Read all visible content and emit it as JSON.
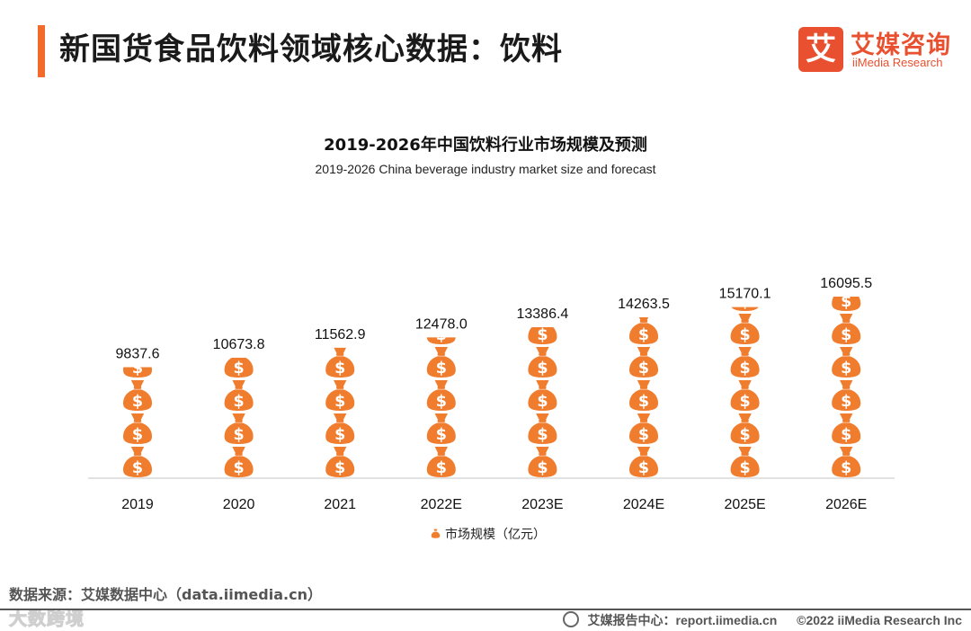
{
  "header": {
    "title": "新国货食品饮料领域核心数据：饮料",
    "accent_color": "#f26b2a"
  },
  "brand": {
    "mark": "艾",
    "name_cn": "艾媒咨询",
    "name_en": "iiMedia Research",
    "color": "#e8502f"
  },
  "chart_data": {
    "type": "bar",
    "title": "2019-2026年中国饮料行业市场规模及预测",
    "subtitle": "2019-2026 China beverage industry market size and forecast",
    "categories": [
      "2019",
      "2020",
      "2021",
      "2022E",
      "2023E",
      "2024E",
      "2025E",
      "2026E"
    ],
    "values": [
      9837.6,
      10673.8,
      11562.9,
      12478.0,
      13386.4,
      14263.5,
      15170.1,
      16095.5
    ],
    "value_labels": [
      "9837.6",
      "10673.8",
      "11562.9",
      "12478.0",
      "13386.4",
      "14263.5",
      "15170.1",
      "16095.5"
    ],
    "series_name": "市场规模（亿元）",
    "bar_color": "#f07c2e",
    "icon": "money-bag-icon",
    "ylim": [
      0,
      16095.5
    ],
    "legend_position": "bottom-center"
  },
  "footer": {
    "source": "数据来源：艾媒数据中心（data.iimedia.cn）",
    "report_center": "艾媒报告中心：report.iimedia.cn",
    "copyright": "©2022  iiMedia Research  Inc",
    "watermark": "大数跨境"
  }
}
